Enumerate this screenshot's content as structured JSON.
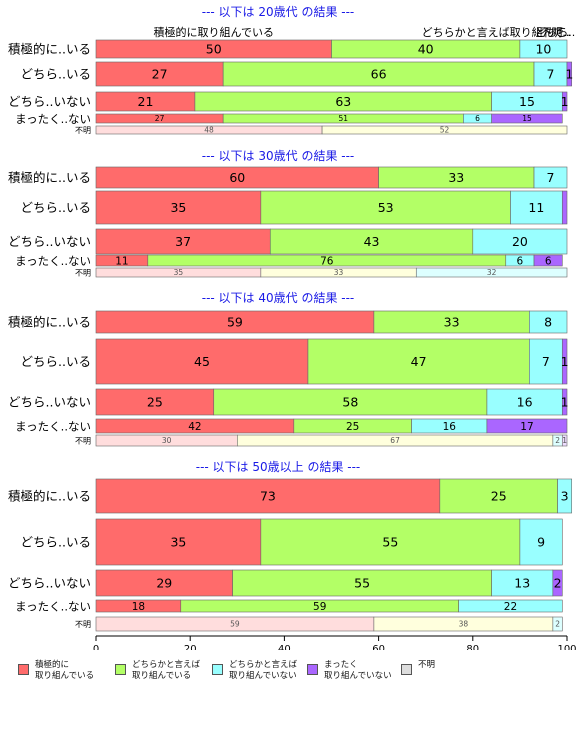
{
  "chart_data": {
    "type": "bar",
    "orientation": "horizontal",
    "stacked": true,
    "xlim": [
      0,
      100
    ],
    "xticks": [
      0,
      20,
      40,
      60,
      80,
      100
    ],
    "header_labels": [
      "積極的に取り組んでいる",
      "どちらかと言えば取り組んで..",
      "どちら..",
      "不明.."
    ],
    "series": [
      {
        "name": "積極的に\n取り組んでいる",
        "color": "#ff6b6b"
      },
      {
        "name": "どちらかと言えば\n取り組んでいる",
        "color": "#b3ff66"
      },
      {
        "name": "どちらかと言えば\n取り組んでいない",
        "color": "#99ffff"
      },
      {
        "name": "まったく\n取り組んでいない",
        "color": "#aa66ff"
      },
      {
        "name": "不明",
        "color": "#dddddd"
      }
    ],
    "panels": [
      {
        "title": "--- 以下は 20歳代 の結果 ---",
        "rows": [
          {
            "label": "積極的に..いる",
            "values": [
              50,
              40,
              10,
              0,
              0
            ],
            "shown": [
              "50",
              "40",
              "10",
              "",
              ""
            ]
          },
          {
            "label": "どちら..いる",
            "values": [
              27,
              66,
              7,
              1,
              0
            ],
            "shown": [
              "27",
              "66",
              "7",
              "1",
              ""
            ]
          },
          {
            "label": "どちら..いない",
            "values": [
              21,
              63,
              15,
              1,
              0
            ],
            "shown": [
              "21",
              "63",
              "15",
              "1",
              ""
            ]
          },
          {
            "label": "まったく..ない",
            "values": [
              27,
              51,
              6,
              15,
              0
            ],
            "shown": [
              "27",
              "51",
              "6",
              "15",
              ""
            ]
          },
          {
            "label": "不明",
            "values": [
              48,
              52,
              0,
              0,
              0
            ],
            "shown": [
              "48",
              "52",
              "",
              "",
              ""
            ],
            "fills": [
              "#ffdddd",
              "#ffffdd"
            ]
          }
        ]
      },
      {
        "title": "--- 以下は 30歳代 の結果 ---",
        "rows": [
          {
            "label": "積極的に..いる",
            "values": [
              60,
              33,
              7,
              0,
              0
            ],
            "shown": [
              "60",
              "33",
              "7",
              "",
              ""
            ]
          },
          {
            "label": "どちら..いる",
            "values": [
              35,
              53,
              11,
              1,
              0
            ],
            "shown": [
              "35",
              "53",
              "11",
              "",
              ""
            ]
          },
          {
            "label": "どちら..いない",
            "values": [
              37,
              43,
              20,
              0,
              0
            ],
            "shown": [
              "37",
              "43",
              "20",
              "",
              ""
            ]
          },
          {
            "label": "まったく..ない",
            "values": [
              11,
              76,
              6,
              6,
              0
            ],
            "shown": [
              "11",
              "76",
              "6",
              "6",
              ""
            ]
          },
          {
            "label": "不明",
            "values": [
              35,
              33,
              32,
              0,
              0
            ],
            "shown": [
              "35",
              "33",
              "32",
              "",
              ""
            ],
            "fills": [
              "#ffdddd",
              "#ffffdd",
              "#ddffff"
            ]
          }
        ]
      },
      {
        "title": "--- 以下は 40歳代 の結果 ---",
        "rows": [
          {
            "label": "積極的に..いる",
            "values": [
              59,
              33,
              8,
              0,
              0
            ],
            "shown": [
              "59",
              "33",
              "8",
              "",
              ""
            ]
          },
          {
            "label": "どちら..いる",
            "values": [
              45,
              47,
              7,
              1,
              0
            ],
            "shown": [
              "45",
              "47",
              "7",
              "1",
              ""
            ]
          },
          {
            "label": "どちら..いない",
            "values": [
              25,
              58,
              16,
              1,
              0
            ],
            "shown": [
              "25",
              "58",
              "16",
              "1",
              ""
            ]
          },
          {
            "label": "まったく..ない",
            "values": [
              42,
              25,
              16,
              17,
              0
            ],
            "shown": [
              "42",
              "25",
              "16",
              "17",
              ""
            ]
          },
          {
            "label": "不明",
            "values": [
              30,
              67,
              2,
              1,
              0
            ],
            "shown": [
              "30",
              "67",
              "2",
              "1",
              ""
            ],
            "fills": [
              "#ffdddd",
              "#ffffdd",
              "#ddffff",
              "#eeddff"
            ]
          }
        ]
      },
      {
        "title": "--- 以下は 50歳以上 の結果 ---",
        "rows": [
          {
            "label": "積極的に..いる",
            "values": [
              73,
              25,
              3,
              0,
              0
            ],
            "shown": [
              "73",
              "25",
              "3",
              "",
              ""
            ]
          },
          {
            "label": "どちら..いる",
            "values": [
              35,
              55,
              9,
              0,
              0
            ],
            "shown": [
              "35",
              "55",
              "9",
              "",
              ""
            ]
          },
          {
            "label": "どちら..いない",
            "values": [
              29,
              55,
              13,
              2,
              0
            ],
            "shown": [
              "29",
              "55",
              "13",
              "2",
              ""
            ]
          },
          {
            "label": "まったく..ない",
            "values": [
              18,
              59,
              22,
              0,
              0
            ],
            "shown": [
              "18",
              "59",
              "22",
              "",
              ""
            ]
          },
          {
            "label": "不明",
            "values": [
              59,
              38,
              2,
              0,
              0
            ],
            "shown": [
              "59",
              "38",
              "2",
              "",
              ""
            ],
            "fills": [
              "#ffdddd",
              "#ffffdd",
              "#ddffff"
            ]
          }
        ]
      }
    ]
  }
}
